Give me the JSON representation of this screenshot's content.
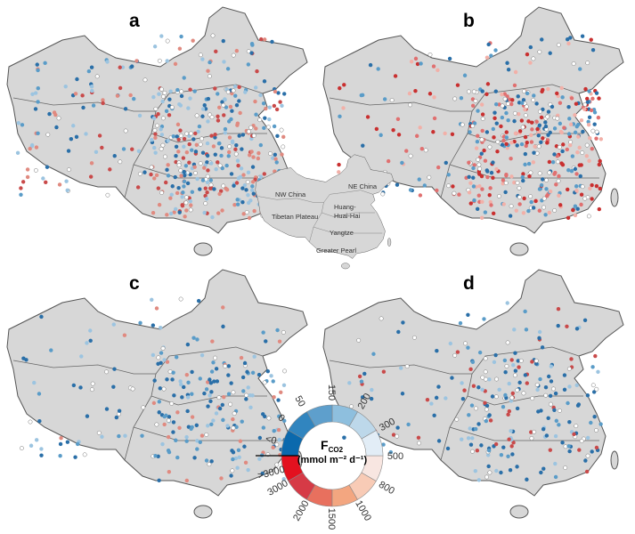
{
  "panels": [
    {
      "label": "a"
    },
    {
      "label": "b"
    },
    {
      "label": "c"
    },
    {
      "label": "d"
    }
  ],
  "regions": [
    "NW China",
    "NE China",
    "Huang-",
    "Huai-Hai",
    "Tibetan Plateau",
    "Yangtze",
    "Greater Pearl"
  ],
  "legend": {
    "title": "F",
    "title_sub": "CO2",
    "unit": "(mmol m⁻² d⁻¹)",
    "ticks": [
      "<0",
      "0",
      "50",
      "150",
      "200",
      "300",
      "500",
      "800",
      "1000",
      "1500",
      "2000",
      "3000",
      ">3000"
    ],
    "blue_colors": [
      "#0b69ad",
      "#3185bf",
      "#5e9fcc",
      "#8ebfde",
      "#bdd8ea",
      "#e2edf6"
    ],
    "red_colors": [
      "#e3111f",
      "#d63a46",
      "#e8705e",
      "#f3a680",
      "#f8cbb6",
      "#f8e6e1"
    ]
  },
  "colors": {
    "land": "#d7d7d7",
    "border": "#555555"
  }
}
